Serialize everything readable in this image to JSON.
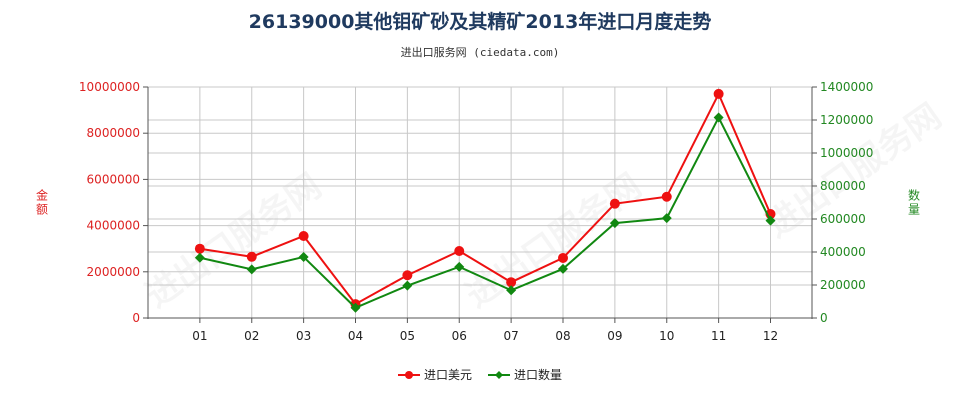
{
  "chart_data": {
    "type": "line",
    "title": "26139000其他钼矿砂及其精矿2013年进口月度走势",
    "subtitle": "进出口服务网 (ciedata.com)",
    "categories": [
      "01",
      "02",
      "03",
      "04",
      "05",
      "06",
      "07",
      "08",
      "09",
      "10",
      "11",
      "12"
    ],
    "y_left": {
      "label": "金额",
      "ylim": [
        0,
        10000000
      ],
      "ticks": [
        "0",
        "2000000",
        "4000000",
        "6000000",
        "8000000",
        "10000000"
      ],
      "color": "#dd2222"
    },
    "y_right": {
      "label": "数量",
      "ylim": [
        0,
        1400000
      ],
      "ticks": [
        "0",
        "200000",
        "400000",
        "600000",
        "800000",
        "1000000",
        "1200000",
        "1400000"
      ],
      "color": "#228822"
    },
    "series": [
      {
        "name": "进口美元",
        "axis": "left",
        "color": "#ee1111",
        "values": [
          3000000,
          2650000,
          3550000,
          600000,
          1850000,
          2900000,
          1550000,
          2600000,
          4950000,
          5250000,
          9700000,
          4500000
        ]
      },
      {
        "name": "进口数量",
        "axis": "right",
        "color": "#118811",
        "values": [
          365000,
          295000,
          370000,
          62000,
          196000,
          310000,
          168000,
          298000,
          575000,
          605000,
          1215000,
          590000
        ]
      }
    ],
    "grid": true,
    "legend_position": "bottom-center"
  },
  "watermark": "进出口服务网"
}
